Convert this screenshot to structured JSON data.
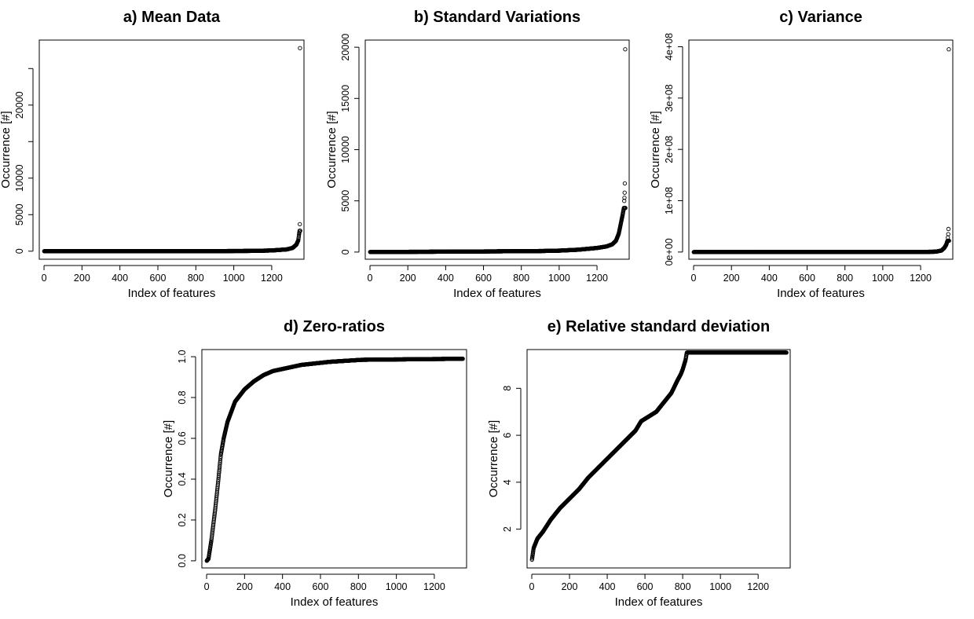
{
  "chart_data": [
    {
      "id": "a",
      "type": "scatter",
      "title": "a) Mean Data",
      "xlabel": "Index of features",
      "ylabel": "Occurrence [#]",
      "xlim": [
        -25,
        1370
      ],
      "ylim": [
        -1100,
        28900
      ],
      "xticks": [
        0,
        200,
        400,
        600,
        800,
        1000,
        1200
      ],
      "yticks": [
        0,
        5000,
        10000,
        15000,
        20000,
        25000
      ],
      "ytick_labels": [
        "0",
        "5000",
        "10000",
        "",
        "20000",
        ""
      ],
      "n_points": 1350,
      "curve": [
        [
          1,
          0
        ],
        [
          900,
          10
        ],
        [
          1100,
          40
        ],
        [
          1200,
          100
        ],
        [
          1280,
          250
        ],
        [
          1310,
          450
        ],
        [
          1330,
          900
        ],
        [
          1340,
          1500
        ],
        [
          1344,
          2300
        ],
        [
          1347,
          2800
        ]
      ],
      "outliers": [
        [
          1348,
          3700
        ],
        [
          1349,
          27800
        ]
      ]
    },
    {
      "id": "b",
      "type": "scatter",
      "title": "b) Standard Variations",
      "xlabel": "Index of features",
      "ylabel": "Occurrence [#]",
      "xlim": [
        -25,
        1370
      ],
      "ylim": [
        -700,
        20700
      ],
      "xticks": [
        0,
        200,
        400,
        600,
        800,
        1000,
        1200
      ],
      "yticks": [
        0,
        5000,
        10000,
        15000,
        20000
      ],
      "ytick_labels": [
        "0",
        "5000",
        "10000",
        "15000",
        "20000"
      ],
      "n_points": 1350,
      "curve": [
        [
          1,
          5
        ],
        [
          300,
          30
        ],
        [
          600,
          60
        ],
        [
          900,
          100
        ],
        [
          1000,
          140
        ],
        [
          1100,
          230
        ],
        [
          1200,
          400
        ],
        [
          1250,
          550
        ],
        [
          1280,
          750
        ],
        [
          1300,
          1100
        ],
        [
          1315,
          1800
        ],
        [
          1325,
          2700
        ],
        [
          1335,
          3600
        ],
        [
          1342,
          4300
        ]
      ],
      "outliers": [
        [
          1344,
          5000
        ],
        [
          1345,
          5300
        ],
        [
          1346,
          5800
        ],
        [
          1347,
          6700
        ],
        [
          1349,
          19800
        ]
      ]
    },
    {
      "id": "c",
      "type": "scatter",
      "title": "c) Variance",
      "xlabel": "Index of features",
      "ylabel": "Occurrence [#]",
      "xlim": [
        -25,
        1370
      ],
      "ylim": [
        -14000000,
        413000000
      ],
      "xticks": [
        0,
        200,
        400,
        600,
        800,
        1000,
        1200
      ],
      "yticks": [
        0,
        100000000,
        200000000,
        300000000,
        400000000
      ],
      "ytick_labels": [
        "0e+00",
        "1e+08",
        "2e+08",
        "3e+08",
        "4e+08"
      ],
      "n_points": 1350,
      "curve": [
        [
          1,
          0
        ],
        [
          1200,
          100000
        ],
        [
          1280,
          700000
        ],
        [
          1310,
          3000000
        ],
        [
          1325,
          8000000
        ],
        [
          1335,
          14000000
        ],
        [
          1342,
          22000000
        ]
      ],
      "outliers": [
        [
          1344,
          28000000
        ],
        [
          1346,
          35000000
        ],
        [
          1347,
          45000000
        ],
        [
          1349,
          395000000
        ]
      ]
    },
    {
      "id": "d",
      "type": "scatter",
      "title": "d) Zero-ratios",
      "xlabel": "Index of features",
      "ylabel": "Occurrence [#]",
      "xlim": [
        -25,
        1370
      ],
      "ylim": [
        -0.035,
        1.035
      ],
      "xticks": [
        0,
        200,
        400,
        600,
        800,
        1000,
        1200
      ],
      "yticks": [
        0,
        0.2,
        0.4,
        0.6,
        0.8,
        1.0
      ],
      "ytick_labels": [
        "0.0",
        "0.2",
        "0.4",
        "0.6",
        "0.8",
        "1.0"
      ],
      "n_points": 1350,
      "curve": [
        [
          1,
          0.0
        ],
        [
          10,
          0.01
        ],
        [
          25,
          0.1
        ],
        [
          45,
          0.25
        ],
        [
          60,
          0.38
        ],
        [
          75,
          0.52
        ],
        [
          90,
          0.6
        ],
        [
          110,
          0.68
        ],
        [
          150,
          0.78
        ],
        [
          200,
          0.84
        ],
        [
          250,
          0.88
        ],
        [
          300,
          0.91
        ],
        [
          350,
          0.93
        ],
        [
          400,
          0.94
        ],
        [
          500,
          0.96
        ],
        [
          650,
          0.975
        ],
        [
          820,
          0.985
        ],
        [
          1350,
          0.99
        ]
      ],
      "outliers": []
    },
    {
      "id": "e",
      "type": "scatter",
      "title": "e) Relative standard deviation",
      "xlabel": "Index of features",
      "ylabel": "Occurrence [#]",
      "xlim": [
        -25,
        1370
      ],
      "ylim": [
        0.35,
        9.65
      ],
      "xticks": [
        0,
        200,
        400,
        600,
        800,
        1000,
        1200
      ],
      "yticks": [
        2,
        4,
        6,
        8
      ],
      "ytick_labels": [
        "2",
        "4",
        "6",
        "8"
      ],
      "n_points": 1350,
      "curve": [
        [
          1,
          0.7
        ],
        [
          10,
          1.2
        ],
        [
          30,
          1.6
        ],
        [
          60,
          1.9
        ],
        [
          100,
          2.4
        ],
        [
          150,
          2.9
        ],
        [
          200,
          3.3
        ],
        [
          250,
          3.7
        ],
        [
          300,
          4.2
        ],
        [
          350,
          4.6
        ],
        [
          400,
          5.0
        ],
        [
          450,
          5.4
        ],
        [
          500,
          5.8
        ],
        [
          550,
          6.2
        ],
        [
          580,
          6.6
        ],
        [
          620,
          6.8
        ],
        [
          660,
          7.0
        ],
        [
          700,
          7.4
        ],
        [
          740,
          7.8
        ],
        [
          770,
          8.3
        ],
        [
          790,
          8.6
        ],
        [
          800,
          8.8
        ],
        [
          815,
          9.2
        ],
        [
          822,
          9.52
        ],
        [
          1350,
          9.52
        ]
      ],
      "outliers": []
    }
  ]
}
